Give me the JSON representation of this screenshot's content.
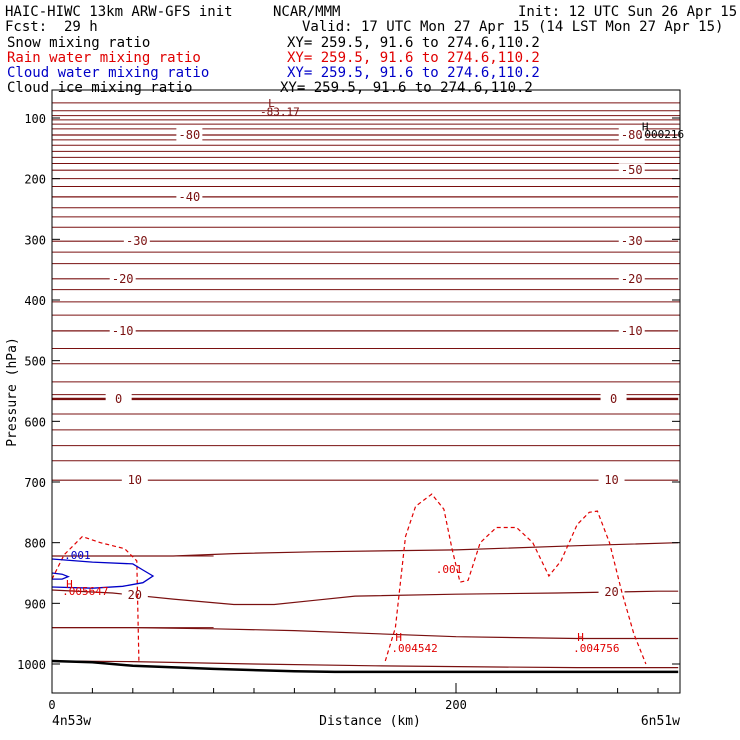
{
  "header": {
    "title": "HAIC-HIWC 13km ARW-GFS init",
    "org": "NCAR/MMM",
    "init": "Init: 12 UTC Sun 26 Apr 15",
    "fcst_label": "Fcst:",
    "fcst_value": "29 h",
    "valid": "Valid: 17 UTC Mon 27 Apr 15 (14 LST Mon 27 Apr 15)"
  },
  "fields": [
    {
      "name": "Snow mixing ratio",
      "xy": "XY= 259.5, 91.6 to 274.6,110.2",
      "color": "#000000"
    },
    {
      "name": "Rain water mixing ratio",
      "xy": "XY= 259.5, 91.6 to 274.6,110.2",
      "color": "#e00000"
    },
    {
      "name": "Cloud water mixing ratio",
      "xy": "XY= 259.5, 91.6 to 274.6,110.2",
      "color": "#0000c8"
    },
    {
      "name": "Cloud ice mixing ratio",
      "xy": "XY= 259.5, 91.6 to 274.6,110.2",
      "color": "#000000"
    }
  ],
  "chart_data": {
    "type": "line",
    "title": "HAIC-HIWC 13km ARW-GFS init",
    "xlabel": "Distance (km)",
    "ylabel": "Pressure (hPa)",
    "xlim": [
      0,
      310
    ],
    "ylim": [
      1050,
      60
    ],
    "xticks": [
      0,
      200
    ],
    "yticks": [
      100,
      200,
      300,
      400,
      500,
      600,
      700,
      800,
      900,
      1000
    ],
    "x_left_label": "4n53w",
    "x_right_label": "6n51w",
    "colors": {
      "temperature": "#7a1010",
      "rain": "#e00000",
      "cloud_water": "#0000c8",
      "ground": "#000000"
    },
    "temperature_contours": [
      {
        "label": "-80",
        "x": [
          0,
          310
        ],
        "y": [
          128,
          128
        ],
        "label_x": [
          68,
          287
        ]
      },
      {
        "label": "-50",
        "x": [
          0,
          310
        ],
        "y": [
          186,
          186
        ],
        "label_x": [
          287
        ]
      },
      {
        "label": "-40",
        "x": [
          0,
          310
        ],
        "y": [
          230,
          230
        ],
        "label_x": [
          68
        ]
      },
      {
        "label": "-30",
        "x": [
          0,
          310
        ],
        "y": [
          303,
          303
        ],
        "label_x": [
          42,
          287
        ]
      },
      {
        "label": "-20",
        "x": [
          0,
          310
        ],
        "y": [
          365,
          365
        ],
        "label_x": [
          35,
          287
        ]
      },
      {
        "label": "-10",
        "x": [
          0,
          310
        ],
        "y": [
          451,
          451
        ],
        "label_x": [
          35,
          287
        ]
      },
      {
        "label": "0",
        "x": [
          0,
          310
        ],
        "y": [
          563,
          563
        ],
        "label_x": [
          33,
          278
        ]
      },
      {
        "label": "10",
        "x": [
          0,
          310
        ],
        "y": [
          697,
          697
        ],
        "label_x": [
          41,
          277
        ]
      },
      {
        "label": "20",
        "x": [
          0,
          30,
          60,
          90,
          110,
          130,
          150,
          200,
          250,
          300,
          310
        ],
        "y": [
          878,
          883,
          893,
          902,
          902,
          895,
          888,
          885,
          883,
          880,
          880
        ],
        "label_x": [
          41,
          277
        ]
      }
    ],
    "extra_isotherms": {
      "top_y": [
        75,
        88,
        96,
        103,
        110,
        118,
        136,
        145,
        155,
        165,
        175,
        200,
        213,
        248,
        263,
        280,
        321,
        340,
        383,
        403,
        425,
        480,
        505,
        535,
        556,
        588,
        614,
        640,
        665
      ],
      "lower_left_y": [
        822,
        940
      ],
      "lower_right_y": [
        800,
        962,
        985
      ]
    },
    "unlabeled_lines": [
      {
        "x": [
          0,
          60,
          90,
          130,
          200,
          260,
          310
        ],
        "y": [
          822,
          822,
          818,
          815,
          812,
          805,
          800
        ]
      },
      {
        "x": [
          0,
          40,
          80,
          120,
          160,
          200,
          260,
          310
        ],
        "y": [
          940,
          940,
          942,
          945,
          950,
          955,
          958,
          958
        ]
      },
      {
        "x": [
          0,
          40,
          100,
          160,
          220,
          260,
          310
        ],
        "y": [
          995,
          996,
          1000,
          1003,
          1005,
          1006,
          1006
        ]
      }
    ],
    "ground": {
      "x": [
        0,
        20,
        40,
        80,
        120,
        140,
        200,
        260,
        310
      ],
      "y": [
        995,
        997,
        1003,
        1008,
        1012,
        1013,
        1013,
        1013,
        1013
      ]
    },
    "rain_contours": [
      {
        "label": ".001",
        "x": [
          0,
          6,
          15,
          24,
          36,
          42,
          43
        ],
        "y": [
          860,
          820,
          790,
          800,
          810,
          830,
          995
        ]
      },
      {
        "label": ".001",
        "x": [
          165,
          170,
          175,
          180,
          188,
          194,
          198,
          202,
          206,
          212,
          220,
          230,
          238,
          246,
          252,
          260,
          266,
          270,
          276,
          282,
          288,
          294
        ],
        "y": [
          995,
          940,
          790,
          740,
          720,
          745,
          810,
          865,
          862,
          800,
          775,
          775,
          800,
          855,
          830,
          770,
          750,
          748,
          800,
          880,
          950,
          1000
        ]
      }
    ],
    "cloud_water_contours": [
      {
        "label": ".001",
        "x": [
          0,
          20,
          40,
          45,
          50,
          45,
          35,
          20,
          0
        ],
        "y": [
          827,
          832,
          835,
          845,
          855,
          866,
          872,
          875,
          873
        ]
      },
      {
        "label": "",
        "x": [
          0,
          5,
          8,
          5,
          0
        ],
        "y": [
          850,
          852,
          856,
          860,
          860
        ]
      }
    ],
    "labels": [
      {
        "text": "L",
        "x": 107,
        "y": 82,
        "color": "#7a1010"
      },
      {
        "text": "-83.17",
        "x": 103,
        "y": 96,
        "color": "#7a1010"
      },
      {
        "text": "H",
        "x": 292,
        "y": 121,
        "color": "#000000"
      },
      {
        "text": ".000216",
        "x": 290,
        "y": 133,
        "color": "#000000"
      },
      {
        "text": "H",
        "x": 7,
        "y": 875,
        "color": "#e00000"
      },
      {
        "text": ".005647",
        "x": 5,
        "y": 886,
        "color": "#e00000"
      },
      {
        "text": ".001",
        "x": 6,
        "y": 827,
        "color": "#0000c8"
      },
      {
        "text": ".001",
        "x": 190,
        "y": 850,
        "color": "#e00000"
      },
      {
        "text": "H",
        "x": 170,
        "y": 962,
        "color": "#e00000"
      },
      {
        "text": ".004542",
        "x": 168,
        "y": 980,
        "color": "#e00000"
      },
      {
        "text": "H",
        "x": 260,
        "y": 962,
        "color": "#e00000"
      },
      {
        "text": ".004756",
        "x": 258,
        "y": 980,
        "color": "#e00000"
      }
    ]
  }
}
